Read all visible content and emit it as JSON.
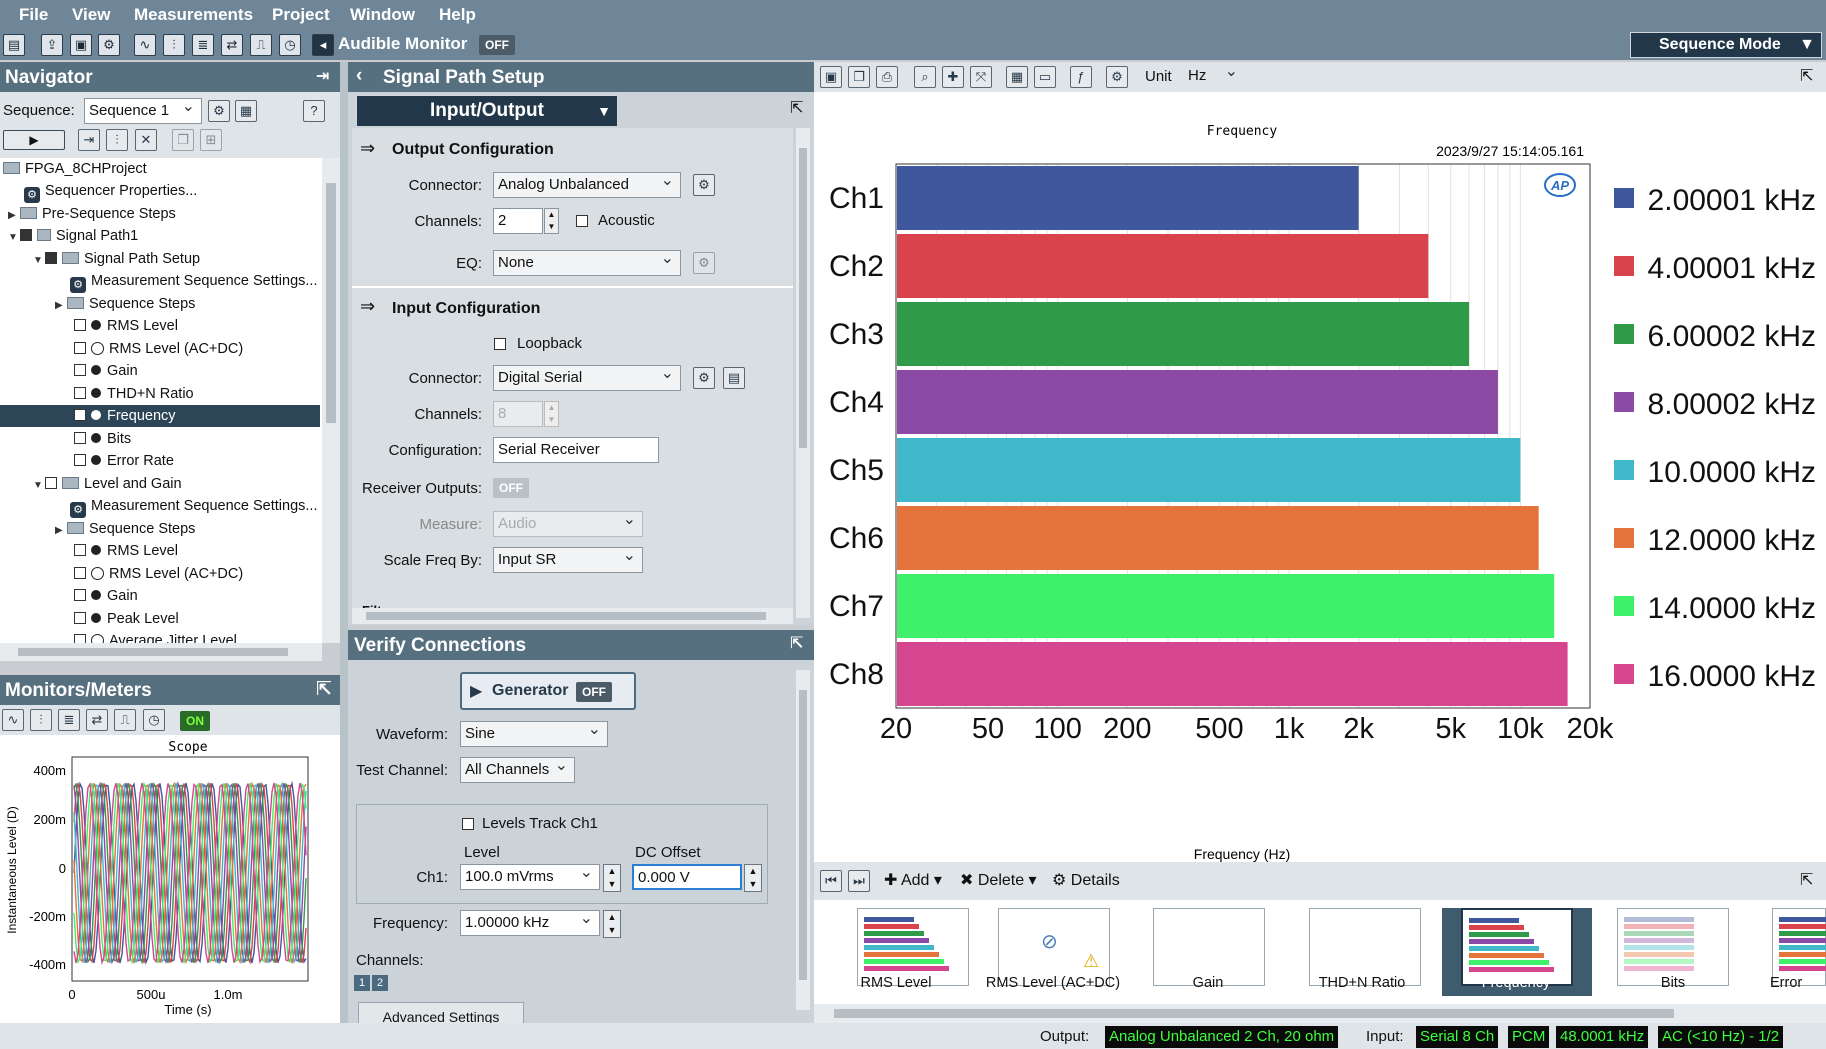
{
  "menu": [
    "File",
    "View",
    "Measurements",
    "Project",
    "Window",
    "Help"
  ],
  "toolbar": {
    "audible_monitor": "Audible Monitor",
    "audible_state": "OFF",
    "sequence_mode": "Sequence Mode"
  },
  "navigator": {
    "title": "Navigator",
    "sequence_label": "Sequence:",
    "sequence_value": "Sequence 1",
    "tree": [
      {
        "label": "FPGA_8CHProject"
      },
      {
        "label": "Sequencer Properties..."
      },
      {
        "label": "Pre-Sequence Steps"
      },
      {
        "label": "Signal Path1"
      },
      {
        "label": "Signal Path Setup"
      },
      {
        "label": "Measurement Sequence Settings..."
      },
      {
        "label": "Sequence Steps"
      },
      {
        "label": "RMS Level"
      },
      {
        "label": "RMS Level (AC+DC)"
      },
      {
        "label": "Gain"
      },
      {
        "label": "THD+N Ratio"
      },
      {
        "label": "Frequency"
      },
      {
        "label": "Bits"
      },
      {
        "label": "Error Rate"
      },
      {
        "label": "Level and Gain"
      },
      {
        "label": "Measurement Sequence Settings..."
      },
      {
        "label": "Sequence Steps"
      },
      {
        "label": "RMS Level"
      },
      {
        "label": "RMS Level (AC+DC)"
      },
      {
        "label": "Gain"
      },
      {
        "label": "Peak Level"
      },
      {
        "label": "Average Jitter Level"
      }
    ]
  },
  "monitors": {
    "title": "Monitors/Meters",
    "on_label": "ON",
    "scope_title": "Scope",
    "ylabel": "Instantaneous Level (D)",
    "xlabel": "Time (s)",
    "yticks": [
      "400m",
      "200m",
      "0",
      "-200m",
      "-400m"
    ],
    "xticks": [
      "0",
      "500u",
      "1.0m"
    ]
  },
  "signal_path": {
    "title": "Signal Path Setup",
    "io_select": "Input/Output",
    "output_title": "Output Configuration",
    "connector_label": "Connector:",
    "out_connector": "Analog Unbalanced",
    "channels_label": "Channels:",
    "out_channels": "2",
    "acoustic": "Acoustic",
    "eq_label": "EQ:",
    "eq_value": "None",
    "input_title": "Input Configuration",
    "loopback": "Loopback",
    "in_connector": "Digital Serial",
    "in_channels": "8",
    "config_label": "Configuration:",
    "config_value": "Serial Receiver",
    "receiver_label": "Receiver Outputs:",
    "receiver_state": "OFF",
    "measure_label": "Measure:",
    "measure_value": "Audio",
    "scale_label": "Scale Freq By:",
    "scale_value": "Input SR",
    "filters": "Filters"
  },
  "verify": {
    "title": "Verify Connections",
    "generator": "Generator",
    "gen_state": "OFF",
    "waveform_label": "Waveform:",
    "waveform": "Sine",
    "testch_label": "Test Channel:",
    "testch": "All Channels",
    "levels_track": "Levels Track Ch1",
    "level_hdr": "Level",
    "dc_hdr": "DC Offset",
    "ch1_label": "Ch1:",
    "level": "100.0 mVrms",
    "dc": "0.000 V",
    "freq_label": "Frequency:",
    "freq": "1.00000 kHz",
    "channels_label": "Channels:",
    "ch_btns": [
      "1",
      "2"
    ],
    "advanced": "Advanced Settings"
  },
  "graph": {
    "unit_label": "Unit",
    "unit_value": "Hz",
    "title": "Frequency",
    "timestamp": "2023/9/27 15:14:05.161",
    "logo": "AP"
  },
  "chart_data": {
    "type": "bar",
    "orientation": "horizontal",
    "title": "Frequency",
    "xlabel": "Frequency (Hz)",
    "xscale": "log",
    "xlim": [
      20,
      20000
    ],
    "xticks": [
      "20",
      "50",
      "100",
      "200",
      "500",
      "1k",
      "2k",
      "5k",
      "10k",
      "20k"
    ],
    "xtick_values": [
      20,
      50,
      100,
      200,
      500,
      1000,
      2000,
      5000,
      10000,
      20000
    ],
    "categories": [
      "Ch1",
      "Ch2",
      "Ch3",
      "Ch4",
      "Ch5",
      "Ch6",
      "Ch7",
      "Ch8"
    ],
    "values": [
      2000.01,
      4000.01,
      6000.02,
      8000.02,
      10000.0,
      12000.0,
      14000.0,
      16000.0
    ],
    "value_labels": [
      "2.00001 kHz",
      "4.00001 kHz",
      "6.00002 kHz",
      "8.00002 kHz",
      "10.0000 kHz",
      "12.0000 kHz",
      "14.0000 kHz",
      "16.0000 kHz"
    ],
    "colors": [
      "#3f579c",
      "#d9434c",
      "#2f9a48",
      "#8a4aa6",
      "#3fb9c9",
      "#e4733c",
      "#3ff06a",
      "#d6458f"
    ],
    "grid": true,
    "legend": "right"
  },
  "results": {
    "add": "Add",
    "delete": "Delete",
    "details": "Details",
    "thumbs": [
      "RMS Level",
      "RMS Level (AC+DC)",
      "Gain",
      "THD+N Ratio",
      "Frequency",
      "Bits",
      "Error"
    ]
  },
  "status": {
    "output_label": "Output:",
    "output_value": "Analog Unbalanced 2 Ch, 20 ohm",
    "input_label": "Input:",
    "in1": "Serial 8 Ch",
    "in2": "PCM",
    "in3": "48.0001 kHz",
    "in4": "AC (<10 Hz) - 1/2"
  }
}
